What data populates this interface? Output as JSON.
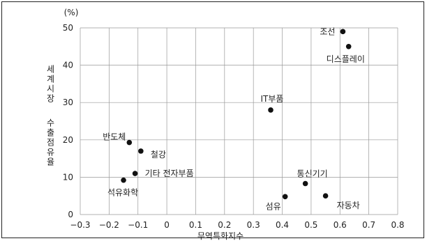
{
  "chart_data": {
    "type": "scatter",
    "xlabel": "무역특화지수",
    "ylabel_lines": [
      "세계시장",
      "수출점유율"
    ],
    "y_unit": "(%)",
    "xlim": [
      -0.3,
      0.8
    ],
    "ylim": [
      0,
      50
    ],
    "xticks": [
      -0.3,
      -0.2,
      -0.1,
      0,
      0.1,
      0.2,
      0.3,
      0.4,
      0.5,
      0.6,
      0.7,
      0.8
    ],
    "xtick_labels": [
      "−0.3",
      "−0.2",
      "−0.1",
      "0",
      "0.1",
      "0.2",
      "0.3",
      "0.4",
      "0.5",
      "0.6",
      "0.7",
      "0.8"
    ],
    "yticks": [
      0,
      10,
      20,
      30,
      40,
      50
    ],
    "ytick_labels": [
      "0",
      "10",
      "20",
      "30",
      "40",
      "50"
    ],
    "grid": true,
    "point_color": "#111111",
    "points": [
      {
        "label": "조선",
        "x": 0.61,
        "y": 49.0
      },
      {
        "label": "디스플레이",
        "x": 0.63,
        "y": 45.0
      },
      {
        "label": "IT부품",
        "x": 0.36,
        "y": 28.0
      },
      {
        "label": "반도체",
        "x": -0.13,
        "y": 19.3
      },
      {
        "label": "철강",
        "x": -0.09,
        "y": 17.0
      },
      {
        "label": "기타 전자부품",
        "x": -0.11,
        "y": 11.0
      },
      {
        "label": "석유화학",
        "x": -0.15,
        "y": 9.2
      },
      {
        "label": "통신기기",
        "x": 0.48,
        "y": 8.3
      },
      {
        "label": "섬유",
        "x": 0.41,
        "y": 4.8
      },
      {
        "label": "자동차",
        "x": 0.55,
        "y": 5.0
      }
    ]
  }
}
